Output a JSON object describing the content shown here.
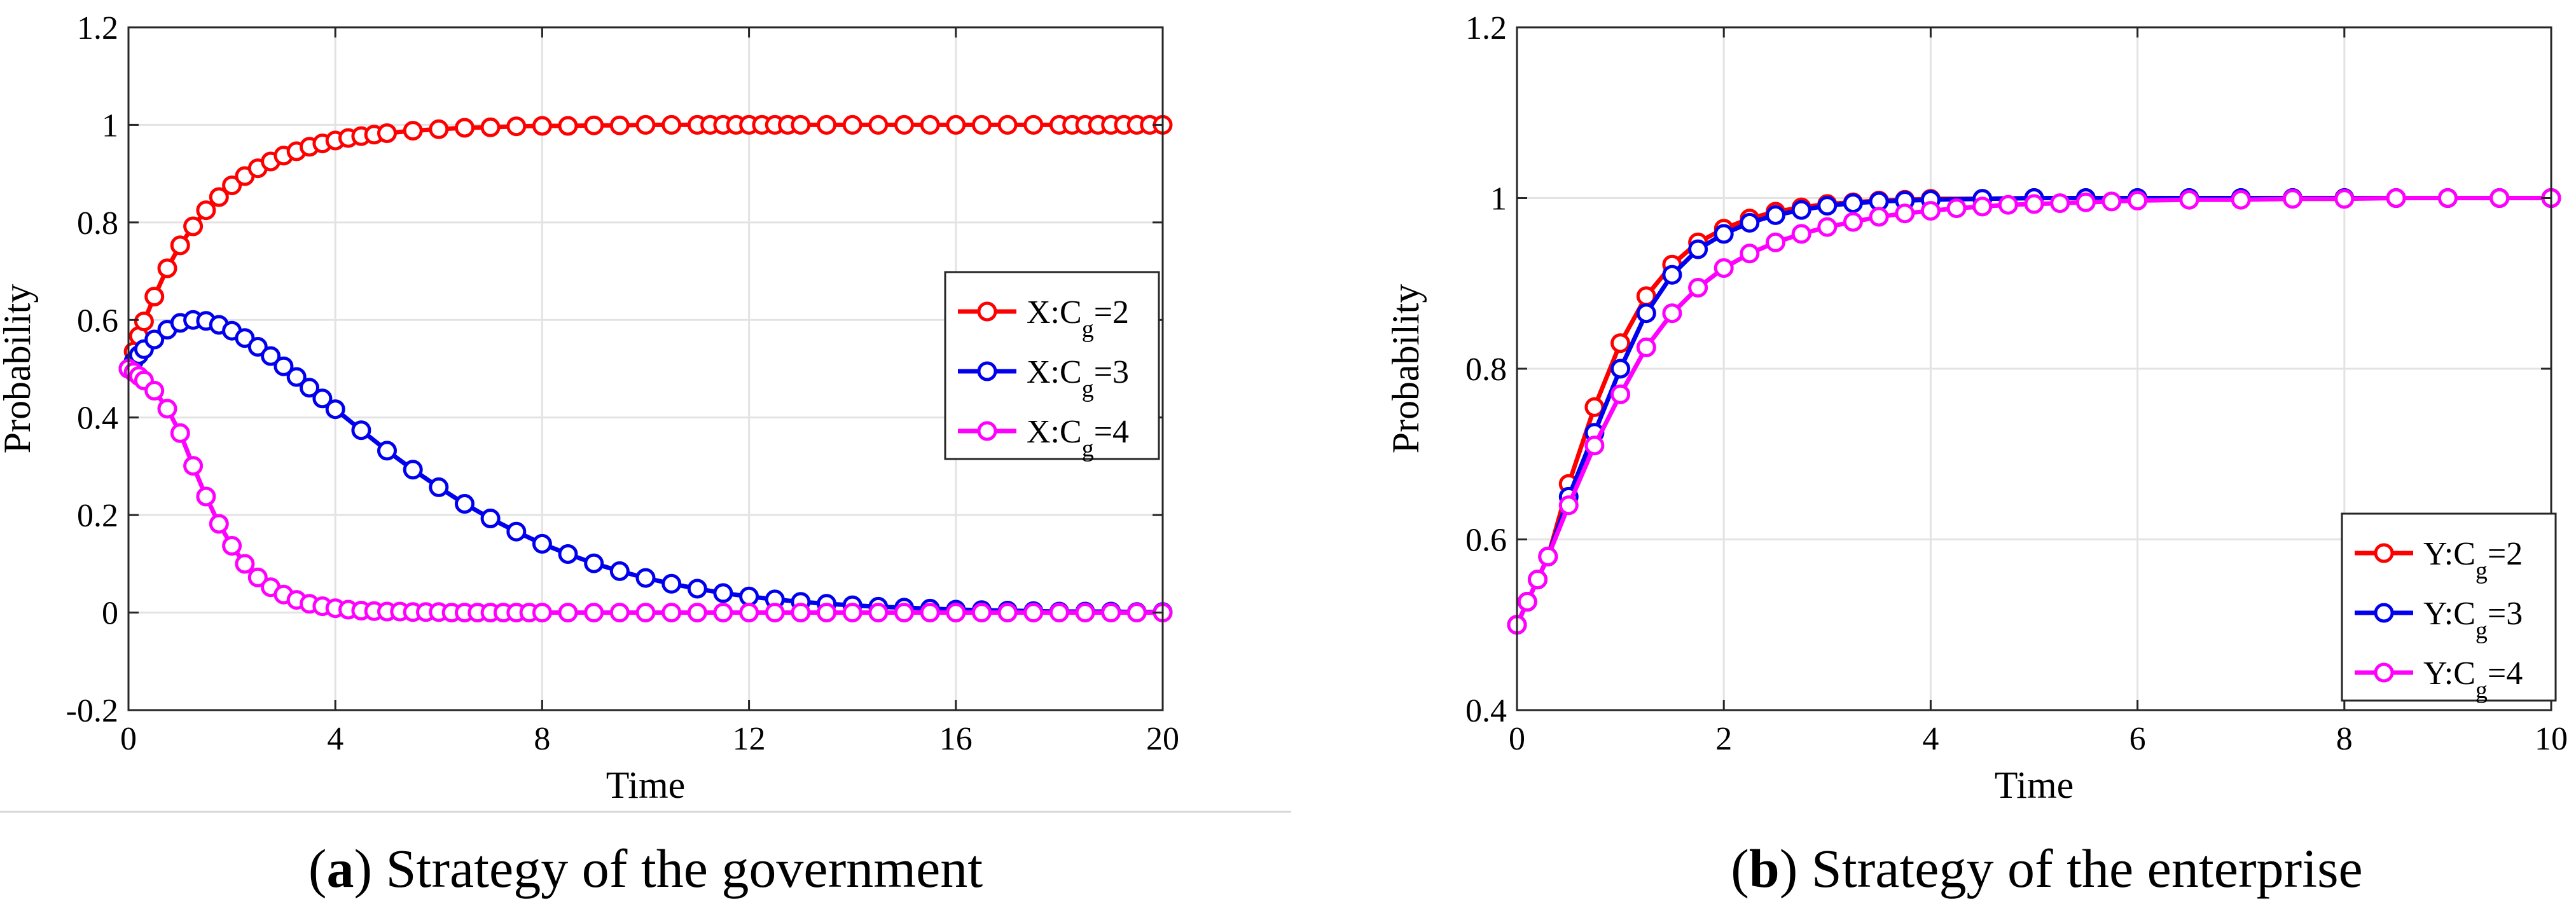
{
  "chart_data": [
    {
      "type": "line",
      "caption": {
        "letter": "a",
        "open": "(",
        "close": ")",
        "text": " Strategy of the government"
      },
      "xlabel": "Time",
      "ylabel": "Probability",
      "xlim": [
        0,
        20
      ],
      "ylim": [
        -0.2,
        1.2
      ],
      "xticks": [
        0,
        4,
        8,
        12,
        16,
        20
      ],
      "yticks": [
        -0.2,
        0,
        0.2,
        0.4,
        0.6,
        0.8,
        1,
        1.2
      ],
      "ytick_labels": [
        "-0.2",
        "0",
        "0.2",
        "0.4",
        "0.6",
        "0.8",
        "1",
        "1.2"
      ],
      "grid": true,
      "legend_position": "right-center",
      "series": [
        {
          "name": "X:C",
          "sub": "g",
          "eq": "=2",
          "color": "#ff0000",
          "x": [
            0,
            0.1,
            0.2,
            0.3,
            0.5,
            0.75,
            1,
            1.25,
            1.5,
            1.75,
            2,
            2.25,
            2.5,
            2.75,
            3,
            3.25,
            3.5,
            3.75,
            4,
            4.25,
            4.5,
            4.75,
            5,
            5.5,
            6,
            6.5,
            7,
            7.5,
            8,
            8.5,
            9,
            9.5,
            10,
            10.5,
            11,
            11.25,
            11.5,
            11.75,
            12,
            12.25,
            12.5,
            12.75,
            13,
            13.5,
            14,
            14.5,
            15,
            15.5,
            16,
            16.5,
            17,
            17.5,
            18,
            18.25,
            18.5,
            18.75,
            19,
            19.25,
            19.5,
            19.75,
            20
          ],
          "y": [
            0.5,
            0.535,
            0.567,
            0.597,
            0.648,
            0.706,
            0.753,
            0.792,
            0.825,
            0.852,
            0.876,
            0.895,
            0.911,
            0.925,
            0.937,
            0.946,
            0.955,
            0.962,
            0.968,
            0.973,
            0.977,
            0.98,
            0.983,
            0.988,
            0.991,
            0.994,
            0.995,
            0.997,
            0.998,
            0.998,
            0.999,
            0.999,
            1.0,
            1.0,
            1.0,
            1.0,
            1.0,
            1.0,
            1.0,
            1.0,
            1.0,
            1.0,
            1.0,
            1.0,
            1.0,
            1.0,
            1.0,
            1.0,
            1.0,
            1.0,
            1.0,
            1.0,
            1.0,
            1.0,
            1.0,
            1.0,
            1.0,
            1.0,
            1.0,
            1.0,
            1.0
          ]
        },
        {
          "name": "X:C",
          "sub": "g",
          "eq": "=3",
          "color": "#0000ee",
          "x": [
            0,
            0.1,
            0.2,
            0.3,
            0.5,
            0.75,
            1,
            1.25,
            1.5,
            1.75,
            2,
            2.25,
            2.5,
            2.75,
            3,
            3.25,
            3.5,
            3.75,
            4,
            4.5,
            5,
            5.5,
            6,
            6.5,
            7,
            7.5,
            8,
            8.5,
            9,
            9.5,
            10,
            10.5,
            11,
            11.5,
            12,
            12.5,
            13,
            13.5,
            14,
            14.5,
            15,
            15.5,
            16,
            16.5,
            17,
            17.5,
            18,
            18.5,
            19,
            19.5,
            20
          ],
          "y": [
            0.5,
            0.515,
            0.528,
            0.54,
            0.56,
            0.58,
            0.594,
            0.6,
            0.598,
            0.59,
            0.578,
            0.563,
            0.545,
            0.526,
            0.505,
            0.483,
            0.461,
            0.439,
            0.417,
            0.374,
            0.332,
            0.293,
            0.257,
            0.223,
            0.193,
            0.166,
            0.141,
            0.12,
            0.101,
            0.085,
            0.071,
            0.059,
            0.049,
            0.04,
            0.033,
            0.027,
            0.022,
            0.018,
            0.015,
            0.012,
            0.01,
            0.008,
            0.006,
            0.005,
            0.004,
            0.003,
            0.002,
            0.002,
            0.002,
            0.001,
            0.001
          ]
        },
        {
          "name": "X:C",
          "sub": "g",
          "eq": "=4",
          "color": "#ff00ff",
          "x": [
            0,
            0.1,
            0.2,
            0.3,
            0.5,
            0.75,
            1,
            1.25,
            1.5,
            1.75,
            2,
            2.25,
            2.5,
            2.75,
            3,
            3.25,
            3.5,
            3.75,
            4,
            4.25,
            4.5,
            4.75,
            5,
            5.25,
            5.5,
            5.75,
            6,
            6.25,
            6.5,
            6.75,
            7,
            7.25,
            7.5,
            7.75,
            8,
            8.5,
            9,
            9.5,
            10,
            10.5,
            11,
            11.5,
            12,
            12.5,
            13,
            13.5,
            14,
            14.5,
            15,
            15.5,
            16,
            16.5,
            17,
            17.5,
            18,
            18.5,
            19,
            19.5,
            20
          ],
          "y": [
            0.5,
            0.493,
            0.485,
            0.476,
            0.455,
            0.418,
            0.368,
            0.301,
            0.238,
            0.182,
            0.137,
            0.1,
            0.072,
            0.052,
            0.037,
            0.026,
            0.018,
            0.013,
            0.009,
            0.006,
            0.004,
            0.003,
            0.002,
            0.002,
            0.001,
            0.001,
            0.001,
            0.0,
            0.0,
            0.0,
            0.0,
            0.0,
            0.0,
            0.0,
            0.0,
            0.0,
            0.0,
            0.0,
            0.0,
            0.0,
            0.0,
            0.0,
            0.0,
            0.0,
            0.0,
            0.0,
            0.0,
            0.0,
            0.0,
            0.0,
            0.0,
            0.0,
            0.0,
            0.0,
            0.0,
            0.0,
            0.0,
            0.0,
            0.0
          ]
        }
      ]
    },
    {
      "type": "line",
      "caption": {
        "letter": "b",
        "open": "(",
        "close": ")",
        "text": " Strategy of the enterprise"
      },
      "xlabel": "Time",
      "ylabel": "Probability",
      "xlim": [
        0,
        10
      ],
      "ylim": [
        0.4,
        1.2
      ],
      "xticks": [
        0,
        2,
        4,
        6,
        8,
        10
      ],
      "yticks": [
        0.4,
        0.6,
        0.8,
        1,
        1.2
      ],
      "ytick_labels": [
        "0.4",
        "0.6",
        "0.8",
        "1",
        "1.2"
      ],
      "grid": true,
      "legend_position": "bottom-right",
      "series": [
        {
          "name": "Y:C",
          "sub": "g",
          "eq": "=2",
          "color": "#ff0000",
          "x": [
            0,
            0.1,
            0.2,
            0.3,
            0.5,
            0.75,
            1,
            1.25,
            1.5,
            1.75,
            2,
            2.25,
            2.5,
            2.75,
            3,
            3.25,
            3.5,
            3.75,
            4,
            4.5,
            5,
            5.5,
            6,
            6.5,
            7,
            7.5,
            8,
            8.5,
            9,
            9.5,
            10
          ],
          "y": [
            0.5,
            0.527,
            0.553,
            0.58,
            0.665,
            0.755,
            0.83,
            0.885,
            0.922,
            0.948,
            0.964,
            0.976,
            0.984,
            0.989,
            0.993,
            0.995,
            0.997,
            0.998,
            0.999,
            0.999,
            1.0,
            1.0,
            1.0,
            1.0,
            1.0,
            1.0,
            1.0,
            1.0,
            1.0,
            1.0,
            1.0
          ]
        },
        {
          "name": "Y:C",
          "sub": "g",
          "eq": "=3",
          "color": "#0000ee",
          "x": [
            0,
            0.1,
            0.2,
            0.3,
            0.5,
            0.75,
            1,
            1.25,
            1.5,
            1.75,
            2,
            2.25,
            2.5,
            2.75,
            3,
            3.25,
            3.5,
            3.75,
            4,
            4.5,
            5,
            5.5,
            6,
            6.5,
            7,
            7.5,
            8,
            8.5,
            9,
            9.5,
            10
          ],
          "y": [
            0.5,
            0.527,
            0.553,
            0.58,
            0.65,
            0.725,
            0.8,
            0.865,
            0.91,
            0.94,
            0.958,
            0.971,
            0.98,
            0.986,
            0.991,
            0.994,
            0.996,
            0.997,
            0.998,
            0.999,
            1.0,
            1.0,
            1.0,
            1.0,
            1.0,
            1.0,
            1.0,
            1.0,
            1.0,
            1.0,
            1.0
          ]
        },
        {
          "name": "Y:C",
          "sub": "g",
          "eq": "=4",
          "color": "#ff00ff",
          "x": [
            0,
            0.1,
            0.2,
            0.3,
            0.5,
            0.75,
            1,
            1.25,
            1.5,
            1.75,
            2,
            2.25,
            2.5,
            2.75,
            3,
            3.25,
            3.5,
            3.75,
            4,
            4.25,
            4.5,
            4.75,
            5,
            5.25,
            5.5,
            5.75,
            6,
            6.5,
            7,
            7.5,
            8,
            8.5,
            9,
            9.5,
            10
          ],
          "y": [
            0.5,
            0.527,
            0.553,
            0.58,
            0.64,
            0.71,
            0.77,
            0.825,
            0.865,
            0.895,
            0.918,
            0.935,
            0.948,
            0.958,
            0.966,
            0.972,
            0.978,
            0.982,
            0.985,
            0.988,
            0.99,
            0.992,
            0.993,
            0.994,
            0.995,
            0.996,
            0.997,
            0.998,
            0.998,
            0.999,
            0.999,
            1.0,
            1.0,
            1.0,
            1.0
          ]
        }
      ]
    }
  ]
}
